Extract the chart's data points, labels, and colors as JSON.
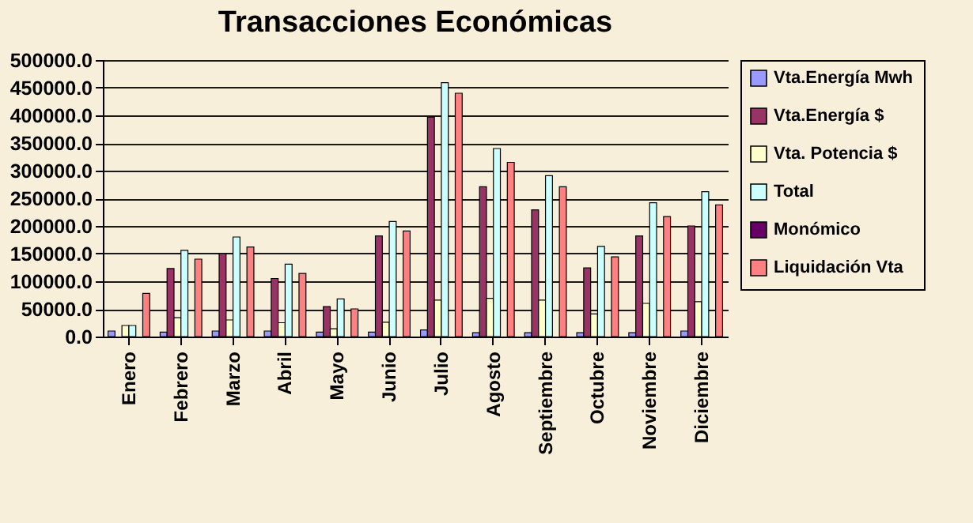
{
  "chart_data": {
    "type": "bar",
    "title": "Transacciones Económicas",
    "categories": [
      "Enero",
      "Febrero",
      "Marzo",
      "Abril",
      "Mayo",
      "Junio",
      "Julio",
      "Agosto",
      "Septiembre",
      "Octubre",
      "Noviembre",
      "Diciembre"
    ],
    "series": [
      {
        "name": "Vta.Energía Mwh",
        "color": "#9999ff",
        "values": [
          10000,
          8000,
          10000,
          10000,
          8000,
          8000,
          12000,
          7000,
          7000,
          7000,
          7000,
          10000
        ]
      },
      {
        "name": "Vta.Energía $",
        "color": "#993366",
        "values": [
          null,
          123000,
          150000,
          105000,
          54000,
          182000,
          397000,
          271000,
          229000,
          124000,
          182000,
          200000
        ]
      },
      {
        "name": "Vta. Potencia $",
        "color": "#ffffcc",
        "values": [
          20000,
          34000,
          30000,
          25000,
          14000,
          26000,
          66000,
          69000,
          66000,
          41000,
          60000,
          63000
        ]
      },
      {
        "name": "Total",
        "color": "#ccffff",
        "values": [
          20000,
          156000,
          180000,
          131000,
          68000,
          208000,
          459000,
          340000,
          291000,
          163000,
          242000,
          262000
        ]
      },
      {
        "name": "Monómico",
        "color": "#660066",
        "values": [
          null,
          null,
          null,
          null,
          null,
          null,
          null,
          null,
          null,
          null,
          null,
          null
        ]
      },
      {
        "name": "Liquidación Vta",
        "color": "#ff8080",
        "values": [
          78000,
          140000,
          162000,
          114000,
          50000,
          191000,
          440000,
          315000,
          271000,
          144000,
          217000,
          238000
        ]
      }
    ],
    "ylim": [
      0,
      500000
    ],
    "yticks": [
      {
        "value": 0,
        "label": "0.0"
      },
      {
        "value": 50000,
        "label": "50000.0"
      },
      {
        "value": 100000,
        "label": "100000.0"
      },
      {
        "value": 150000,
        "label": "150000.0"
      },
      {
        "value": 200000,
        "label": "200000.0"
      },
      {
        "value": 250000,
        "label": "250000.0"
      },
      {
        "value": 300000,
        "label": "300000.0"
      },
      {
        "value": 350000,
        "label": "350000.0"
      },
      {
        "value": 400000,
        "label": "400000.0"
      },
      {
        "value": 450000,
        "label": "450000.0"
      },
      {
        "value": 500000,
        "label": "500000.0"
      }
    ],
    "grid": "y",
    "legend": "right"
  }
}
